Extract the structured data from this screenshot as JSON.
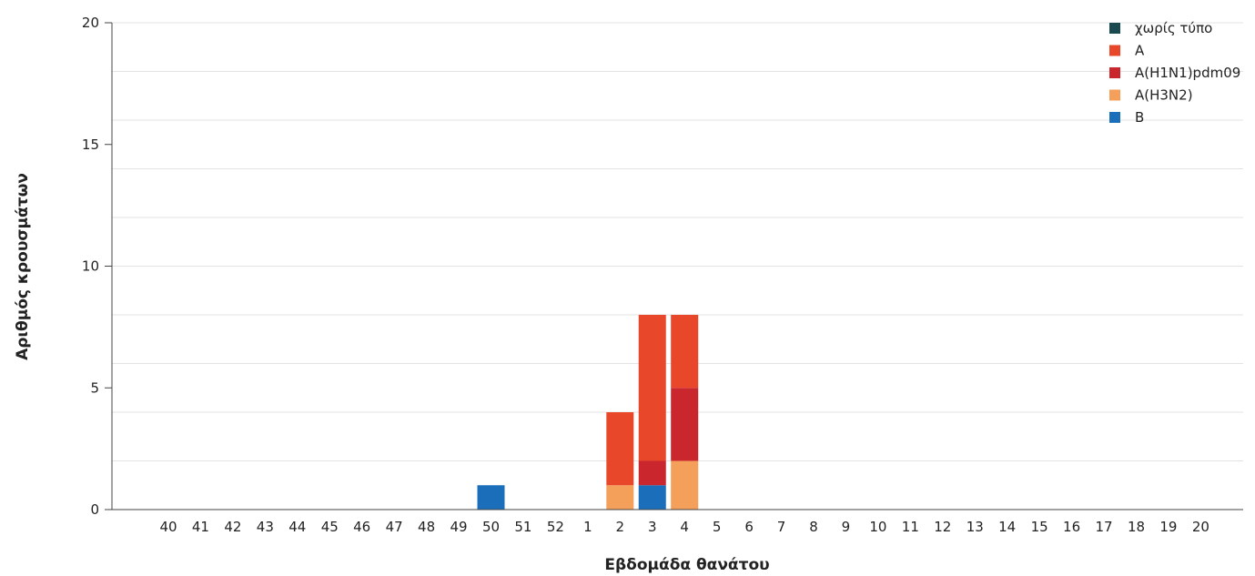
{
  "chart_data": {
    "type": "bar",
    "stacked": true,
    "xlabel": "Εβδομάδα θανάτου",
    "ylabel": "Αριθμός κρουσμάτων",
    "ylim": [
      0,
      20
    ],
    "yticks": [
      0,
      5,
      10,
      15,
      20
    ],
    "grid": true,
    "legend_position": "top-right",
    "categories": [
      "40",
      "41",
      "42",
      "43",
      "44",
      "45",
      "46",
      "47",
      "48",
      "49",
      "50",
      "51",
      "52",
      "1",
      "2",
      "3",
      "4",
      "5",
      "6",
      "7",
      "8",
      "9",
      "10",
      "11",
      "12",
      "13",
      "14",
      "15",
      "16",
      "17",
      "18",
      "19",
      "20"
    ],
    "series": [
      {
        "name": "χωρίς τύπο",
        "color": "#1a4a4f",
        "values": [
          0,
          0,
          0,
          0,
          0,
          0,
          0,
          0,
          0,
          0,
          0,
          0,
          0,
          0,
          0,
          0,
          0,
          0,
          0,
          0,
          0,
          0,
          0,
          0,
          0,
          0,
          0,
          0,
          0,
          0,
          0,
          0,
          0
        ]
      },
      {
        "name": "A",
        "color": "#e8472a",
        "values": [
          0,
          0,
          0,
          0,
          0,
          0,
          0,
          0,
          0,
          0,
          0,
          0,
          0,
          0,
          3,
          6,
          3,
          0,
          0,
          0,
          0,
          0,
          0,
          0,
          0,
          0,
          0,
          0,
          0,
          0,
          0,
          0,
          0
        ]
      },
      {
        "name": "A(H1N1)pdm09",
        "color": "#c9262e",
        "values": [
          0,
          0,
          0,
          0,
          0,
          0,
          0,
          0,
          0,
          0,
          0,
          0,
          0,
          0,
          0,
          1,
          3,
          0,
          0,
          0,
          0,
          0,
          0,
          0,
          0,
          0,
          0,
          0,
          0,
          0,
          0,
          0,
          0
        ]
      },
      {
        "name": "A(H3N2)",
        "color": "#f5a05a",
        "values": [
          0,
          0,
          0,
          0,
          0,
          0,
          0,
          0,
          0,
          0,
          0,
          0,
          0,
          0,
          1,
          0,
          2,
          0,
          0,
          0,
          0,
          0,
          0,
          0,
          0,
          0,
          0,
          0,
          0,
          0,
          0,
          0,
          0
        ]
      },
      {
        "name": "B",
        "color": "#1b6fba",
        "values": [
          0,
          0,
          0,
          0,
          0,
          0,
          0,
          0,
          0,
          0,
          1,
          0,
          0,
          0,
          0,
          1,
          0,
          0,
          0,
          0,
          0,
          0,
          0,
          0,
          0,
          0,
          0,
          0,
          0,
          0,
          0,
          0,
          0
        ]
      }
    ],
    "stack_order": [
      "B",
      "A(H3N2)",
      "A(H1N1)pdm09",
      "A",
      "χωρίς τύπο"
    ]
  }
}
